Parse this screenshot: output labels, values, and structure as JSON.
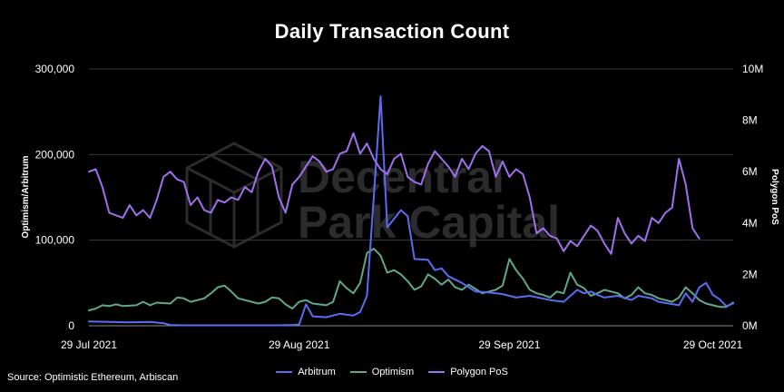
{
  "chart_data": {
    "type": "line",
    "title": "Daily Transaction Count",
    "source": "Source: Optimistic Ethereum, Arbiscan",
    "watermark": [
      "Decentral",
      "Park Capital"
    ],
    "x_axis": {
      "start": "2021-07-29",
      "end": "2021-11-01",
      "ticks": [
        {
          "date": "2021-07-29",
          "label": "29 Jul 2021"
        },
        {
          "date": "2021-08-29",
          "label": "29 Aug 2021"
        },
        {
          "date": "2021-09-29",
          "label": "29 Sep 2021"
        },
        {
          "date": "2021-10-29",
          "label": "29 Oct 2021"
        }
      ]
    },
    "y_left": {
      "label": "Optimism/Arbitrum",
      "ylim": [
        0,
        300000
      ],
      "ticks": [
        {
          "value": 0,
          "label": "0"
        },
        {
          "value": 100000,
          "label": "100,000"
        },
        {
          "value": 200000,
          "label": "200,000"
        },
        {
          "value": 300000,
          "label": "300,000"
        }
      ]
    },
    "y_right": {
      "label": "Polygon PoS",
      "ylim": [
        0,
        10000000
      ],
      "ticks": [
        {
          "value": 0,
          "label": "0M"
        },
        {
          "value": 2000000,
          "label": "2M"
        },
        {
          "value": 4000000,
          "label": "4M"
        },
        {
          "value": 6000000,
          "label": "6M"
        },
        {
          "value": 8000000,
          "label": "8M"
        },
        {
          "value": 10000000,
          "label": "10M"
        }
      ]
    },
    "grid": true,
    "legend_position": "bottom",
    "series": [
      {
        "name": "Arbitrum",
        "color": "#5a6cf0",
        "axis": "left",
        "points": [
          [
            "2021-07-29",
            5000
          ],
          [
            "2021-08-01",
            4500
          ],
          [
            "2021-08-04",
            4000
          ],
          [
            "2021-08-07",
            4500
          ],
          [
            "2021-08-09",
            3000
          ],
          [
            "2021-08-10",
            1000
          ],
          [
            "2021-08-12",
            500
          ],
          [
            "2021-08-26",
            500
          ],
          [
            "2021-08-28",
            1000
          ],
          [
            "2021-08-29",
            1500
          ],
          [
            "2021-08-30",
            25000
          ],
          [
            "2021-08-31",
            11000
          ],
          [
            "2021-09-02",
            10000
          ],
          [
            "2021-09-04",
            14000
          ],
          [
            "2021-09-06",
            12000
          ],
          [
            "2021-09-07",
            16000
          ],
          [
            "2021-09-08",
            35000
          ],
          [
            "2021-09-09",
            150000
          ],
          [
            "2021-09-10",
            268000
          ],
          [
            "2021-09-11",
            115000
          ],
          [
            "2021-09-12",
            125000
          ],
          [
            "2021-09-13",
            135000
          ],
          [
            "2021-09-14",
            128000
          ],
          [
            "2021-09-15",
            78000
          ],
          [
            "2021-09-17",
            77000
          ],
          [
            "2021-09-18",
            65000
          ],
          [
            "2021-09-19",
            67000
          ],
          [
            "2021-09-20",
            58000
          ],
          [
            "2021-09-22",
            50000
          ],
          [
            "2021-09-24",
            40000
          ],
          [
            "2021-09-26",
            39000
          ],
          [
            "2021-09-28",
            37000
          ],
          [
            "2021-09-30",
            33000
          ],
          [
            "2021-10-02",
            35000
          ],
          [
            "2021-10-05",
            30000
          ],
          [
            "2021-10-07",
            28000
          ],
          [
            "2021-10-09",
            42000
          ],
          [
            "2021-10-10",
            38000
          ],
          [
            "2021-10-11",
            40000
          ],
          [
            "2021-10-12",
            36000
          ],
          [
            "2021-10-13",
            33000
          ],
          [
            "2021-10-15",
            35000
          ],
          [
            "2021-10-17",
            30000
          ],
          [
            "2021-10-18",
            35000
          ],
          [
            "2021-10-20",
            32000
          ],
          [
            "2021-10-21",
            28000
          ],
          [
            "2021-10-24",
            24000
          ],
          [
            "2021-10-25",
            38000
          ],
          [
            "2021-10-26",
            28000
          ],
          [
            "2021-10-27",
            45000
          ],
          [
            "2021-10-28",
            50000
          ],
          [
            "2021-10-29",
            36000
          ],
          [
            "2021-10-30",
            31000
          ],
          [
            "2021-10-31",
            23000
          ],
          [
            "2021-11-01",
            26000
          ]
        ]
      },
      {
        "name": "Optimism",
        "color": "#5fa88a",
        "axis": "left",
        "points": [
          [
            "2021-07-29",
            18000
          ],
          [
            "2021-07-30",
            20000
          ],
          [
            "2021-07-31",
            24000
          ],
          [
            "2021-08-01",
            23000
          ],
          [
            "2021-08-02",
            25000
          ],
          [
            "2021-08-03",
            23000
          ],
          [
            "2021-08-05",
            24000
          ],
          [
            "2021-08-06",
            28000
          ],
          [
            "2021-08-07",
            24000
          ],
          [
            "2021-08-08",
            27000
          ],
          [
            "2021-08-10",
            26000
          ],
          [
            "2021-08-11",
            33000
          ],
          [
            "2021-08-12",
            32000
          ],
          [
            "2021-08-13",
            28000
          ],
          [
            "2021-08-15",
            32000
          ],
          [
            "2021-08-16",
            38000
          ],
          [
            "2021-08-17",
            45000
          ],
          [
            "2021-08-18",
            47000
          ],
          [
            "2021-08-19",
            40000
          ],
          [
            "2021-08-20",
            32000
          ],
          [
            "2021-08-22",
            28000
          ],
          [
            "2021-08-23",
            26000
          ],
          [
            "2021-08-24",
            28000
          ],
          [
            "2021-08-25",
            33000
          ],
          [
            "2021-08-26",
            32000
          ],
          [
            "2021-08-27",
            25000
          ],
          [
            "2021-08-28",
            20000
          ],
          [
            "2021-08-29",
            28000
          ],
          [
            "2021-08-30",
            30000
          ],
          [
            "2021-08-31",
            26000
          ],
          [
            "2021-09-02",
            24000
          ],
          [
            "2021-09-03",
            28000
          ],
          [
            "2021-09-04",
            52000
          ],
          [
            "2021-09-05",
            44000
          ],
          [
            "2021-09-06",
            38000
          ],
          [
            "2021-09-07",
            50000
          ],
          [
            "2021-09-08",
            85000
          ],
          [
            "2021-09-09",
            90000
          ],
          [
            "2021-09-10",
            82000
          ],
          [
            "2021-09-11",
            62000
          ],
          [
            "2021-09-12",
            65000
          ],
          [
            "2021-09-13",
            60000
          ],
          [
            "2021-09-14",
            52000
          ],
          [
            "2021-09-15",
            42000
          ],
          [
            "2021-09-16",
            46000
          ],
          [
            "2021-09-17",
            60000
          ],
          [
            "2021-09-18",
            55000
          ],
          [
            "2021-09-19",
            48000
          ],
          [
            "2021-09-20",
            54000
          ],
          [
            "2021-09-21",
            45000
          ],
          [
            "2021-09-22",
            42000
          ],
          [
            "2021-09-23",
            48000
          ],
          [
            "2021-09-24",
            43000
          ],
          [
            "2021-09-25",
            38000
          ],
          [
            "2021-09-26",
            40000
          ],
          [
            "2021-09-27",
            42000
          ],
          [
            "2021-09-28",
            47000
          ],
          [
            "2021-09-29",
            78000
          ],
          [
            "2021-09-30",
            65000
          ],
          [
            "2021-10-01",
            55000
          ],
          [
            "2021-10-02",
            42000
          ],
          [
            "2021-10-03",
            38000
          ],
          [
            "2021-10-04",
            36000
          ],
          [
            "2021-10-05",
            33000
          ],
          [
            "2021-10-06",
            40000
          ],
          [
            "2021-10-07",
            38000
          ],
          [
            "2021-10-08",
            62000
          ],
          [
            "2021-10-09",
            48000
          ],
          [
            "2021-10-10",
            44000
          ],
          [
            "2021-10-11",
            35000
          ],
          [
            "2021-10-12",
            38000
          ],
          [
            "2021-10-13",
            42000
          ],
          [
            "2021-10-14",
            40000
          ],
          [
            "2021-10-15",
            38000
          ],
          [
            "2021-10-16",
            32000
          ],
          [
            "2021-10-17",
            36000
          ],
          [
            "2021-10-18",
            45000
          ],
          [
            "2021-10-19",
            38000
          ],
          [
            "2021-10-20",
            36000
          ],
          [
            "2021-10-21",
            32000
          ],
          [
            "2021-10-22",
            30000
          ],
          [
            "2021-10-23",
            28000
          ],
          [
            "2021-10-24",
            33000
          ],
          [
            "2021-10-25",
            45000
          ],
          [
            "2021-10-26",
            38000
          ],
          [
            "2021-10-27",
            30000
          ],
          [
            "2021-10-28",
            26000
          ],
          [
            "2021-10-29",
            24000
          ],
          [
            "2021-10-30",
            22000
          ],
          [
            "2021-10-31",
            22000
          ],
          [
            "2021-11-01",
            27000
          ]
        ]
      },
      {
        "name": "Polygon PoS",
        "color": "#a070ef",
        "axis": "right",
        "points": [
          [
            "2021-07-29",
            6000000
          ],
          [
            "2021-07-30",
            6100000
          ],
          [
            "2021-07-31",
            5400000
          ],
          [
            "2021-08-01",
            4400000
          ],
          [
            "2021-08-02",
            4300000
          ],
          [
            "2021-08-03",
            4200000
          ],
          [
            "2021-08-04",
            4700000
          ],
          [
            "2021-08-05",
            4300000
          ],
          [
            "2021-08-06",
            4500000
          ],
          [
            "2021-08-07",
            4200000
          ],
          [
            "2021-08-08",
            4900000
          ],
          [
            "2021-08-09",
            5800000
          ],
          [
            "2021-08-10",
            6000000
          ],
          [
            "2021-08-11",
            5700000
          ],
          [
            "2021-08-12",
            5600000
          ],
          [
            "2021-08-13",
            4700000
          ],
          [
            "2021-08-14",
            5000000
          ],
          [
            "2021-08-15",
            4500000
          ],
          [
            "2021-08-16",
            4400000
          ],
          [
            "2021-08-17",
            4900000
          ],
          [
            "2021-08-18",
            4800000
          ],
          [
            "2021-08-19",
            5000000
          ],
          [
            "2021-08-20",
            4900000
          ],
          [
            "2021-08-21",
            5400000
          ],
          [
            "2021-08-22",
            5200000
          ],
          [
            "2021-08-23",
            6000000
          ],
          [
            "2021-08-24",
            6500000
          ],
          [
            "2021-08-25",
            6200000
          ],
          [
            "2021-08-26",
            5000000
          ],
          [
            "2021-08-27",
            4400000
          ],
          [
            "2021-08-28",
            5500000
          ],
          [
            "2021-08-29",
            5800000
          ],
          [
            "2021-08-30",
            6200000
          ],
          [
            "2021-08-31",
            6600000
          ],
          [
            "2021-09-01",
            6400000
          ],
          [
            "2021-09-02",
            6000000
          ],
          [
            "2021-09-03",
            6100000
          ],
          [
            "2021-09-04",
            6700000
          ],
          [
            "2021-09-05",
            6800000
          ],
          [
            "2021-09-06",
            7500000
          ],
          [
            "2021-09-07",
            6700000
          ],
          [
            "2021-09-08",
            7100000
          ],
          [
            "2021-09-09",
            6500000
          ],
          [
            "2021-09-10",
            6100000
          ],
          [
            "2021-09-11",
            5900000
          ],
          [
            "2021-09-12",
            6500000
          ],
          [
            "2021-09-13",
            6700000
          ],
          [
            "2021-09-14",
            5800000
          ],
          [
            "2021-09-15",
            5600000
          ],
          [
            "2021-09-16",
            5500000
          ],
          [
            "2021-09-17",
            6300000
          ],
          [
            "2021-09-18",
            6800000
          ],
          [
            "2021-09-19",
            6500000
          ],
          [
            "2021-09-20",
            6200000
          ],
          [
            "2021-09-21",
            5800000
          ],
          [
            "2021-09-22",
            6500000
          ],
          [
            "2021-09-23",
            6100000
          ],
          [
            "2021-09-24",
            6700000
          ],
          [
            "2021-09-25",
            7000000
          ],
          [
            "2021-09-26",
            6800000
          ],
          [
            "2021-09-27",
            5800000
          ],
          [
            "2021-09-28",
            6400000
          ],
          [
            "2021-09-29",
            5800000
          ],
          [
            "2021-09-30",
            6100000
          ],
          [
            "2021-10-01",
            5900000
          ],
          [
            "2021-10-02",
            5000000
          ],
          [
            "2021-10-03",
            3600000
          ],
          [
            "2021-10-04",
            3800000
          ],
          [
            "2021-10-05",
            3500000
          ],
          [
            "2021-10-06",
            3400000
          ],
          [
            "2021-10-07",
            2900000
          ],
          [
            "2021-10-08",
            3300000
          ],
          [
            "2021-10-09",
            3100000
          ],
          [
            "2021-10-10",
            3500000
          ],
          [
            "2021-10-11",
            3900000
          ],
          [
            "2021-10-12",
            3700000
          ],
          [
            "2021-10-13",
            3200000
          ],
          [
            "2021-10-14",
            2800000
          ],
          [
            "2021-10-15",
            4200000
          ],
          [
            "2021-10-16",
            3600000
          ],
          [
            "2021-10-17",
            3200000
          ],
          [
            "2021-10-18",
            3500000
          ],
          [
            "2021-10-19",
            3300000
          ],
          [
            "2021-10-20",
            4200000
          ],
          [
            "2021-10-21",
            4000000
          ],
          [
            "2021-10-22",
            4400000
          ],
          [
            "2021-10-23",
            4600000
          ],
          [
            "2021-10-24",
            6500000
          ],
          [
            "2021-10-25",
            5500000
          ],
          [
            "2021-10-26",
            3800000
          ],
          [
            "2021-10-27",
            3400000
          ]
        ]
      }
    ]
  }
}
